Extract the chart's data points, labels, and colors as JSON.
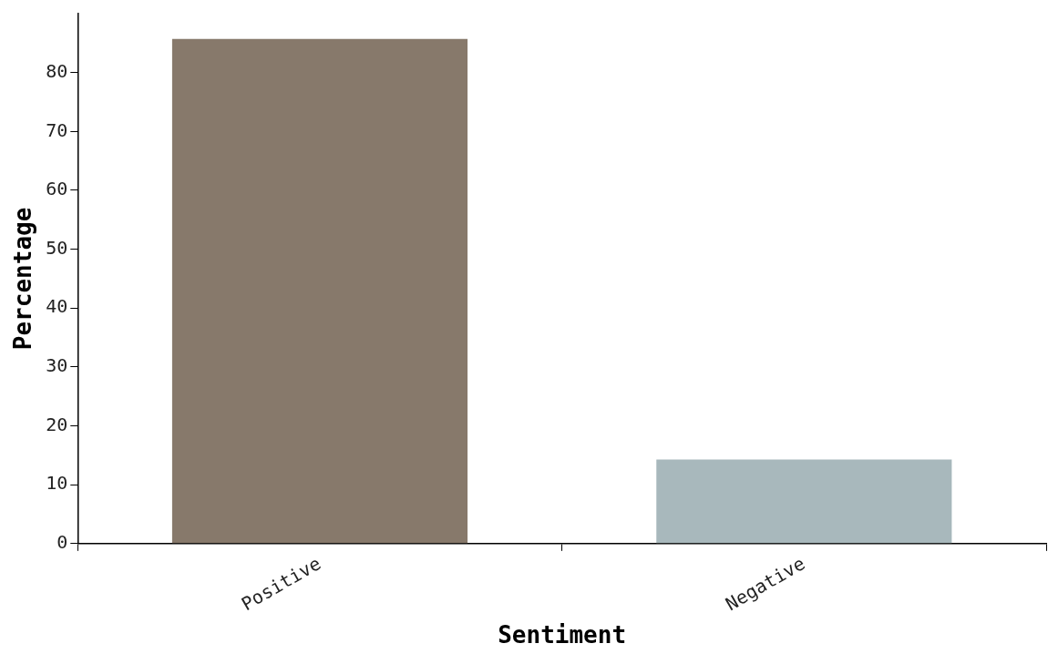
{
  "chart_data": {
    "type": "bar",
    "xlabel": "Sentiment",
    "ylabel": "Percentage",
    "categories": [
      "Positive",
      "Negative"
    ],
    "values": [
      85.7,
      14.3
    ],
    "colors": [
      "#87796b",
      "#a8b8bc"
    ],
    "ylim": [
      0,
      90
    ],
    "yticks": [
      0,
      10,
      20,
      30,
      40,
      50,
      60,
      70,
      80
    ],
    "grid": false,
    "legend": false
  }
}
